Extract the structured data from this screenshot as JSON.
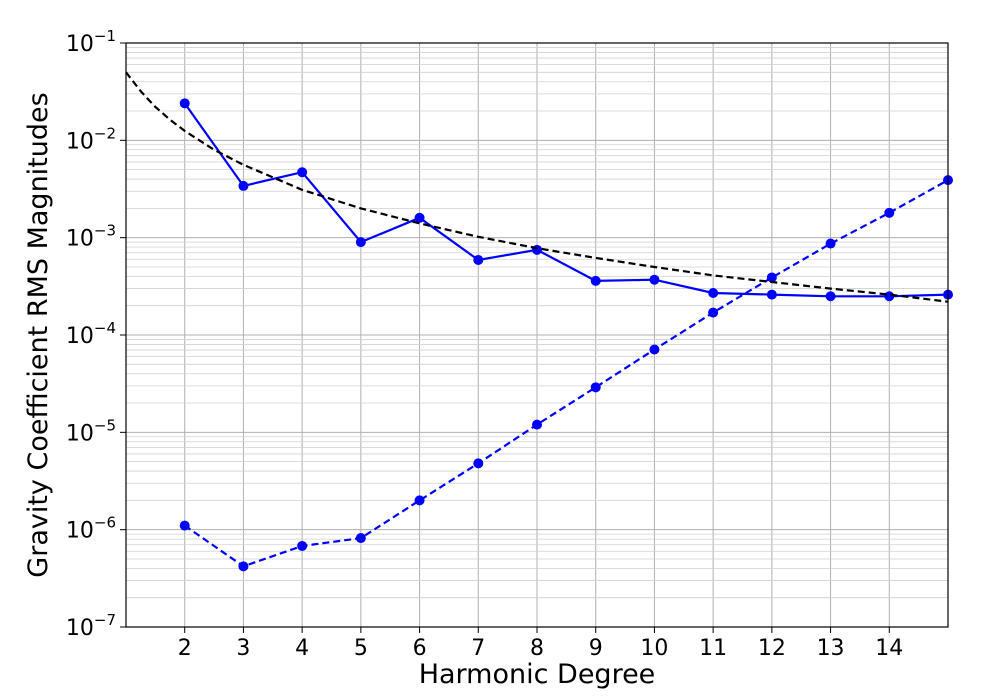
{
  "chart_data": {
    "type": "line",
    "title": "",
    "xlabel": "Harmonic Degree",
    "ylabel": "Gravity Coefficient RMS Magnitudes",
    "xlim": [
      1,
      15
    ],
    "ylim": [
      1e-07,
      0.1
    ],
    "yscale": "log",
    "grid": true,
    "x_ticks": [
      2,
      3,
      4,
      5,
      6,
      7,
      8,
      9,
      10,
      11,
      12,
      13,
      14
    ],
    "y_ticks": [
      {
        "value": 0.1,
        "base": "10",
        "exp": "−1"
      },
      {
        "value": 0.01,
        "base": "10",
        "exp": "−2"
      },
      {
        "value": 0.001,
        "base": "10",
        "exp": "−3"
      },
      {
        "value": 0.0001,
        "base": "10",
        "exp": "−4"
      },
      {
        "value": 1e-05,
        "base": "10",
        "exp": "−5"
      },
      {
        "value": 1e-06,
        "base": "10",
        "exp": "−6"
      },
      {
        "value": 1e-07,
        "base": "10",
        "exp": "−7"
      }
    ],
    "series": [
      {
        "style": "solid",
        "color": "#0000ff",
        "markers": true,
        "x": [
          2,
          3,
          4,
          5,
          6,
          7,
          8,
          9,
          10,
          11,
          12,
          13,
          14,
          15
        ],
        "y": [
          0.024,
          0.0034,
          0.0047,
          0.0009,
          0.0016,
          0.00059,
          0.00075,
          0.00036,
          0.00037,
          0.00027,
          0.00026,
          0.00025,
          0.00025,
          0.00026
        ]
      },
      {
        "style": "dashed",
        "color": "#0000ff",
        "markers": true,
        "x": [
          2,
          3,
          4,
          5,
          6,
          7,
          8,
          9,
          10,
          11,
          12,
          13,
          14,
          15
        ],
        "y": [
          1.1e-06,
          4.2e-07,
          6.8e-07,
          8.2e-07,
          2e-06,
          4.8e-06,
          1.2e-05,
          2.9e-05,
          7.1e-05,
          0.00017,
          0.00039,
          0.00087,
          0.0018,
          0.0039
        ]
      },
      {
        "style": "dashed",
        "color": "#000000",
        "markers": false,
        "x": [
          1,
          1.25,
          1.5,
          1.75,
          2,
          2.5,
          3,
          4,
          5,
          6,
          7,
          8,
          9,
          10,
          11,
          12,
          13,
          14,
          15
        ],
        "y": [
          0.05,
          0.032,
          0.022,
          0.0163,
          0.0125,
          0.008,
          0.0056,
          0.0031,
          0.002,
          0.0014,
          0.00102,
          0.00078,
          0.00062,
          0.0005,
          0.00041,
          0.00035,
          0.0003,
          0.00026,
          0.00022
        ]
      }
    ]
  }
}
